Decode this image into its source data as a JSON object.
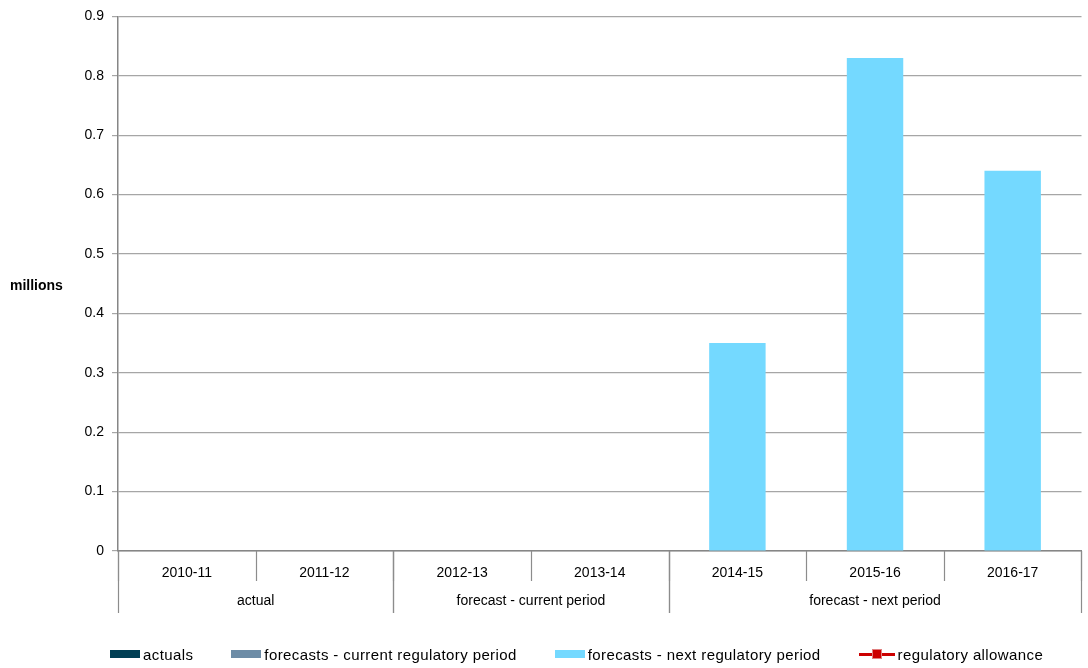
{
  "chart_data": {
    "type": "bar",
    "ylabel": "millions",
    "categories": [
      "2010-11",
      "2011-12",
      "2012-13",
      "2013-14",
      "2014-15",
      "2015-16",
      "2016-17"
    ],
    "series": [
      {
        "name": "actuals",
        "color": "#013f54",
        "values": [
          null,
          null,
          null,
          null,
          null,
          null,
          null
        ]
      },
      {
        "name": "forecasts - current regulatory period",
        "color": "#6d8ca6",
        "values": [
          null,
          null,
          null,
          null,
          null,
          null,
          null
        ]
      },
      {
        "name": "forecasts - next regulatory period",
        "color": "#74d9ff",
        "values": [
          null,
          null,
          null,
          null,
          0.35,
          0.83,
          0.64
        ]
      },
      {
        "name": "regulatory allowance",
        "type": "line",
        "color": "#cc0000",
        "values": [
          null,
          null,
          null,
          null,
          null,
          null,
          null
        ]
      }
    ],
    "ylim": [
      0,
      0.9
    ],
    "yticks": [
      0,
      0.1,
      0.2,
      0.3,
      0.4,
      0.5,
      0.6,
      0.7,
      0.8,
      0.9
    ],
    "annotations": [
      "actual",
      "forecast - current period",
      "forecast - next period"
    ],
    "grid": "y",
    "legend": "bottom",
    "marker": "square"
  }
}
